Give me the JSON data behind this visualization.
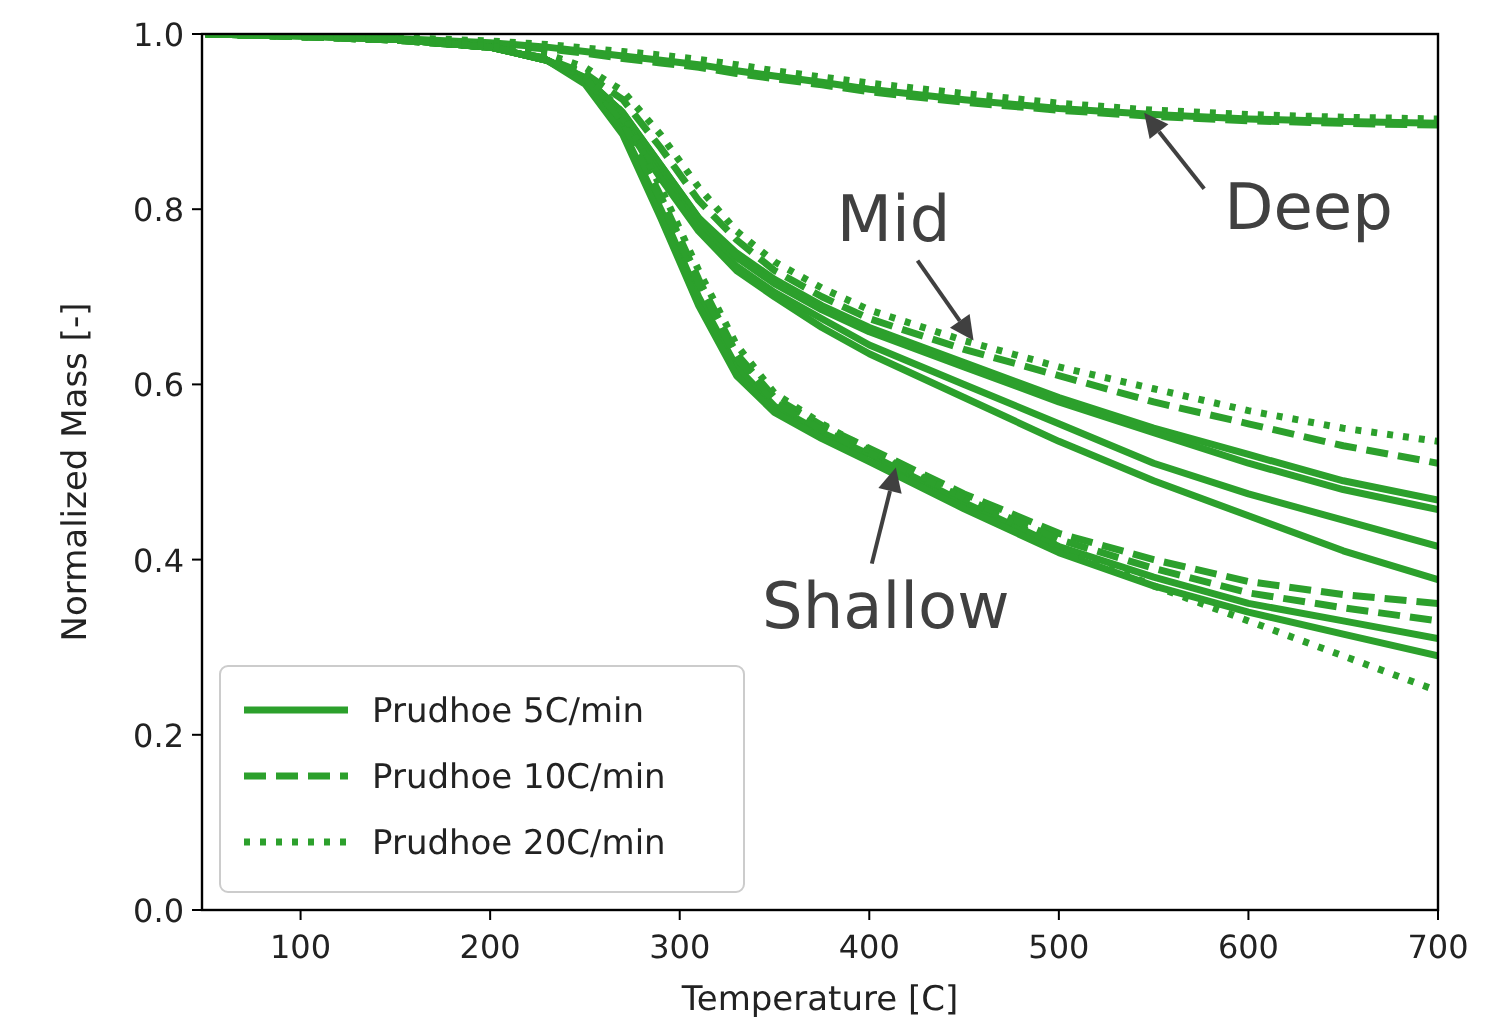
{
  "chart_data": {
    "type": "line",
    "xlabel": "Temperature [C]",
    "ylabel": "Normalized Mass [-]",
    "x": [
      50,
      100,
      150,
      200,
      230,
      250,
      270,
      290,
      310,
      330,
      350,
      375,
      400,
      450,
      500,
      550,
      600,
      650,
      700
    ],
    "xlim": [
      48,
      700
    ],
    "xticks": [
      100,
      200,
      300,
      400,
      500,
      600,
      700
    ],
    "ylim": [
      0,
      1
    ],
    "yticks": [
      {
        "value": 0,
        "label": "0.0"
      },
      {
        "value": 0.2,
        "label": "0.2"
      },
      {
        "value": 0.4,
        "label": "0.4"
      },
      {
        "value": 0.6,
        "label": "0.6"
      },
      {
        "value": 0.8,
        "label": "0.8"
      },
      {
        "value": 1,
        "label": "1.0"
      }
    ],
    "grid": false,
    "legend": "bottom left",
    "series": [
      {
        "name": "Prudhoe 5C/min",
        "color": "#2ca02c",
        "line_style": "solid",
        "values": [
          1.0,
          0.998,
          0.995,
          0.99,
          0.985,
          0.98,
          0.975,
          0.97,
          0.965,
          0.958,
          0.952,
          0.945,
          0.937,
          0.925,
          0.915,
          0.908,
          0.903,
          0.9,
          0.898
        ]
      },
      {
        "name": "Prudhoe 10C/min",
        "color": "#2ca02c",
        "line_style": "dashed",
        "values": [
          1.0,
          0.997,
          0.994,
          0.988,
          0.983,
          0.978,
          0.972,
          0.967,
          0.962,
          0.955,
          0.949,
          0.942,
          0.934,
          0.922,
          0.913,
          0.906,
          0.901,
          0.898,
          0.896
        ]
      },
      {
        "name": "Prudhoe 20C/min",
        "color": "#2ca02c",
        "line_style": "dotted",
        "values": [
          1.0,
          0.998,
          0.996,
          0.992,
          0.988,
          0.984,
          0.98,
          0.976,
          0.971,
          0.965,
          0.958,
          0.951,
          0.944,
          0.932,
          0.921,
          0.913,
          0.908,
          0.905,
          0.903
        ]
      },
      {
        "color": "#2ca02c",
        "line_style": "solid",
        "values": [
          1.0,
          0.998,
          0.994,
          0.985,
          0.97,
          0.95,
          0.91,
          0.85,
          0.79,
          0.75,
          0.72,
          0.69,
          0.665,
          0.625,
          0.585,
          0.55,
          0.52,
          0.49,
          0.468
        ]
      },
      {
        "color": "#2ca02c",
        "line_style": "solid",
        "values": [
          1.0,
          0.998,
          0.994,
          0.985,
          0.97,
          0.95,
          0.91,
          0.85,
          0.79,
          0.745,
          0.715,
          0.685,
          0.66,
          0.62,
          0.58,
          0.545,
          0.51,
          0.48,
          0.457
        ]
      },
      {
        "color": "#2ca02c",
        "line_style": "solid",
        "values": [
          1.0,
          0.998,
          0.994,
          0.985,
          0.97,
          0.948,
          0.905,
          0.84,
          0.78,
          0.735,
          0.705,
          0.675,
          0.645,
          0.6,
          0.555,
          0.51,
          0.475,
          0.445,
          0.415
        ]
      },
      {
        "color": "#2ca02c",
        "line_style": "solid",
        "values": [
          1.0,
          0.998,
          0.994,
          0.985,
          0.97,
          0.948,
          0.9,
          0.835,
          0.775,
          0.73,
          0.7,
          0.665,
          0.635,
          0.585,
          0.535,
          0.49,
          0.45,
          0.41,
          0.377
        ]
      },
      {
        "color": "#2ca02c",
        "line_style": "dashed",
        "values": [
          1.0,
          0.997,
          0.993,
          0.985,
          0.972,
          0.955,
          0.925,
          0.87,
          0.81,
          0.765,
          0.73,
          0.7,
          0.675,
          0.64,
          0.61,
          0.58,
          0.555,
          0.53,
          0.51
        ]
      },
      {
        "color": "#2ca02c",
        "line_style": "dotted",
        "values": [
          1.0,
          0.997,
          0.993,
          0.987,
          0.977,
          0.962,
          0.935,
          0.885,
          0.825,
          0.775,
          0.74,
          0.71,
          0.685,
          0.65,
          0.62,
          0.595,
          0.57,
          0.55,
          0.535
        ]
      },
      {
        "color": "#2ca02c",
        "line_style": "solid",
        "values": [
          1.0,
          0.998,
          0.994,
          0.985,
          0.97,
          0.945,
          0.89,
          0.8,
          0.7,
          0.62,
          0.575,
          0.545,
          0.52,
          0.465,
          0.415,
          0.38,
          0.35,
          0.33,
          0.31
        ]
      },
      {
        "color": "#2ca02c",
        "line_style": "solid",
        "values": [
          1.0,
          0.998,
          0.994,
          0.985,
          0.97,
          0.943,
          0.885,
          0.79,
          0.69,
          0.61,
          0.568,
          0.538,
          0.512,
          0.458,
          0.408,
          0.37,
          0.34,
          0.315,
          0.29
        ]
      },
      {
        "color": "#2ca02c",
        "line_style": "dashed",
        "values": [
          1.0,
          0.997,
          0.993,
          0.985,
          0.972,
          0.95,
          0.9,
          0.815,
          0.72,
          0.635,
          0.585,
          0.553,
          0.527,
          0.475,
          0.43,
          0.4,
          0.375,
          0.36,
          0.35
        ]
      },
      {
        "color": "#2ca02c",
        "line_style": "dashed",
        "values": [
          1.0,
          0.997,
          0.993,
          0.985,
          0.972,
          0.95,
          0.9,
          0.81,
          0.715,
          0.63,
          0.58,
          0.548,
          0.522,
          0.47,
          0.423,
          0.39,
          0.362,
          0.345,
          0.33
        ]
      },
      {
        "color": "#2ca02c",
        "line_style": "dotted",
        "values": [
          1.0,
          0.997,
          0.993,
          0.986,
          0.975,
          0.955,
          0.91,
          0.825,
          0.73,
          0.645,
          0.59,
          0.555,
          0.525,
          0.47,
          0.415,
          0.37,
          0.33,
          0.29,
          0.25
        ]
      }
    ],
    "annotations": [
      {
        "text": "Deep",
        "x": 545,
        "y": 0.91
      },
      {
        "text": "Mid",
        "x": 455,
        "y": 0.65
      },
      {
        "text": "Shallow",
        "x": 414,
        "y": 0.505
      }
    ]
  }
}
